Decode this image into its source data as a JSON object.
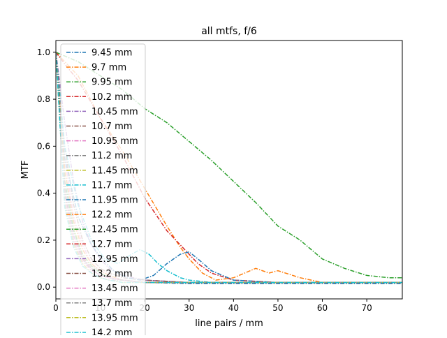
{
  "chart_data": {
    "type": "line",
    "title": "all mtfs, f/6",
    "xlabel": "line pairs / mm",
    "ylabel": "MTF",
    "xlim": [
      0,
      78
    ],
    "ylim": [
      -0.05,
      1.05
    ],
    "x_ticks": [
      0,
      10,
      20,
      30,
      40,
      50,
      60,
      70
    ],
    "y_ticks": [
      0.0,
      0.2,
      0.4,
      0.6,
      0.8,
      1.0
    ],
    "grid": false,
    "legend_placement": "top-left",
    "line_style": "dash-dot",
    "series": [
      {
        "name": "9.45 mm",
        "color": "#1f77b4",
        "x": [
          0,
          2,
          4,
          6,
          8,
          10,
          12,
          15,
          20,
          30,
          50,
          78
        ],
        "y": [
          1.0,
          0.5,
          0.25,
          0.12,
          0.08,
          0.05,
          0.04,
          0.03,
          0.02,
          0.015,
          0.015,
          0.015
        ]
      },
      {
        "name": "9.7 mm",
        "color": "#ff7f0e",
        "x": [
          0,
          2,
          5,
          10,
          15,
          20,
          25,
          28,
          30,
          33,
          36,
          40,
          45,
          48,
          50,
          55,
          60,
          65,
          70,
          78
        ],
        "y": [
          1.0,
          0.96,
          0.9,
          0.72,
          0.58,
          0.42,
          0.26,
          0.17,
          0.12,
          0.06,
          0.03,
          0.04,
          0.08,
          0.06,
          0.07,
          0.04,
          0.02,
          0.02,
          0.02,
          0.02
        ]
      },
      {
        "name": "9.95 mm",
        "color": "#2ca02c",
        "x": [
          0,
          5,
          10,
          15,
          20,
          25,
          30,
          35,
          40,
          45,
          50,
          55,
          60,
          65,
          70,
          75,
          78
        ],
        "y": [
          1.0,
          0.96,
          0.9,
          0.84,
          0.76,
          0.7,
          0.62,
          0.54,
          0.45,
          0.36,
          0.26,
          0.2,
          0.12,
          0.08,
          0.05,
          0.04,
          0.04
        ]
      },
      {
        "name": "10.2 mm",
        "color": "#d62728",
        "x": [
          0,
          2,
          5,
          10,
          15,
          20,
          25,
          28,
          30,
          32,
          35,
          40,
          50,
          60,
          78
        ],
        "y": [
          1.0,
          0.95,
          0.88,
          0.72,
          0.56,
          0.38,
          0.24,
          0.18,
          0.14,
          0.1,
          0.06,
          0.03,
          0.02,
          0.02,
          0.02
        ]
      },
      {
        "name": "10.45 mm",
        "color": "#9467bd",
        "x": [
          0,
          2,
          4,
          6,
          8,
          10,
          12,
          15,
          20,
          30,
          50,
          78
        ],
        "y": [
          1.0,
          0.7,
          0.45,
          0.28,
          0.18,
          0.12,
          0.08,
          0.05,
          0.03,
          0.02,
          0.02,
          0.02
        ]
      },
      {
        "name": "10.7 mm",
        "color": "#8c564b",
        "x": [
          0,
          2,
          4,
          6,
          8,
          10,
          12,
          15,
          20,
          30,
          50,
          78
        ],
        "y": [
          1.0,
          0.6,
          0.35,
          0.2,
          0.12,
          0.08,
          0.06,
          0.04,
          0.03,
          0.02,
          0.02,
          0.02
        ]
      },
      {
        "name": "10.95 mm",
        "color": "#e377c2",
        "x": [
          0,
          2,
          4,
          6,
          8,
          10,
          12,
          15,
          20,
          30,
          50,
          78
        ],
        "y": [
          1.0,
          0.55,
          0.3,
          0.18,
          0.1,
          0.07,
          0.05,
          0.03,
          0.02,
          0.02,
          0.02,
          0.02
        ]
      },
      {
        "name": "11.2 mm",
        "color": "#7f7f7f",
        "x": [
          0,
          2,
          4,
          6,
          8,
          10,
          12,
          15,
          20,
          30,
          50,
          78
        ],
        "y": [
          1.0,
          0.5,
          0.28,
          0.16,
          0.1,
          0.06,
          0.04,
          0.03,
          0.02,
          0.02,
          0.02,
          0.02
        ]
      },
      {
        "name": "11.45 mm",
        "color": "#bcbd22",
        "x": [
          0,
          2,
          4,
          6,
          8,
          10,
          12,
          15,
          20,
          30,
          50,
          78
        ],
        "y": [
          1.0,
          0.45,
          0.25,
          0.14,
          0.09,
          0.06,
          0.04,
          0.03,
          0.02,
          0.02,
          0.02,
          0.02
        ]
      },
      {
        "name": "11.7 mm",
        "color": "#17becf",
        "x": [
          0,
          2,
          5,
          8,
          11,
          14,
          17,
          19,
          21,
          23,
          25,
          28,
          30,
          35,
          40,
          50,
          78
        ],
        "y": [
          1.0,
          0.6,
          0.35,
          0.2,
          0.12,
          0.1,
          0.14,
          0.16,
          0.14,
          0.1,
          0.07,
          0.04,
          0.03,
          0.02,
          0.02,
          0.02,
          0.02
        ]
      },
      {
        "name": "11.95 mm",
        "color": "#1f77b4",
        "x": [
          0,
          2,
          5,
          8,
          10,
          13,
          16,
          19,
          22,
          25,
          28,
          30,
          32,
          35,
          40,
          50,
          78
        ],
        "y": [
          1.0,
          0.55,
          0.3,
          0.18,
          0.13,
          0.07,
          0.04,
          0.03,
          0.05,
          0.1,
          0.14,
          0.15,
          0.12,
          0.07,
          0.03,
          0.02,
          0.02
        ]
      },
      {
        "name": "12.2 mm",
        "color": "#ff7f0e",
        "x": [
          0,
          2,
          4,
          6,
          8,
          10,
          12,
          15,
          20,
          30,
          50,
          78
        ],
        "y": [
          1.0,
          0.5,
          0.28,
          0.16,
          0.1,
          0.07,
          0.05,
          0.03,
          0.02,
          0.02,
          0.02,
          0.02
        ]
      },
      {
        "name": "12.45 mm",
        "color": "#2ca02c",
        "x": [
          0,
          2,
          4,
          6,
          8,
          10,
          12,
          15,
          20,
          30,
          50,
          78
        ],
        "y": [
          1.0,
          0.45,
          0.24,
          0.14,
          0.09,
          0.06,
          0.04,
          0.03,
          0.02,
          0.02,
          0.02,
          0.02
        ]
      },
      {
        "name": "12.7 mm",
        "color": "#d62728",
        "x": [
          0,
          2,
          4,
          6,
          8,
          10,
          12,
          15,
          20,
          30,
          50,
          78
        ],
        "y": [
          1.0,
          0.4,
          0.22,
          0.13,
          0.08,
          0.05,
          0.04,
          0.03,
          0.02,
          0.02,
          0.02,
          0.02
        ]
      },
      {
        "name": "12.95 mm",
        "color": "#9467bd",
        "x": [
          0,
          2,
          4,
          6,
          8,
          10,
          12,
          15,
          20,
          30,
          50,
          78
        ],
        "y": [
          1.0,
          0.42,
          0.22,
          0.12,
          0.08,
          0.05,
          0.04,
          0.03,
          0.02,
          0.02,
          0.02,
          0.02
        ]
      },
      {
        "name": "13.2 mm",
        "color": "#8c564b",
        "x": [
          0,
          2,
          4,
          6,
          8,
          10,
          12,
          15,
          20,
          30,
          50,
          78
        ],
        "y": [
          1.0,
          0.4,
          0.2,
          0.12,
          0.07,
          0.05,
          0.04,
          0.03,
          0.02,
          0.02,
          0.02,
          0.02
        ]
      },
      {
        "name": "13.45 mm",
        "color": "#e377c2",
        "x": [
          0,
          2,
          4,
          6,
          8,
          10,
          12,
          15,
          20,
          30,
          50,
          78
        ],
        "y": [
          1.0,
          0.38,
          0.2,
          0.11,
          0.07,
          0.05,
          0.04,
          0.03,
          0.02,
          0.02,
          0.02,
          0.02
        ]
      },
      {
        "name": "13.7 mm",
        "color": "#7f7f7f",
        "x": [
          0,
          2,
          4,
          6,
          8,
          10,
          12,
          15,
          20,
          30,
          50,
          78
        ],
        "y": [
          1.0,
          0.36,
          0.19,
          0.1,
          0.06,
          0.04,
          0.03,
          0.03,
          0.02,
          0.02,
          0.02,
          0.02
        ]
      },
      {
        "name": "13.95 mm",
        "color": "#bcbd22",
        "x": [
          0,
          2,
          4,
          6,
          8,
          10,
          12,
          15,
          20,
          30,
          50,
          78
        ],
        "y": [
          1.0,
          0.35,
          0.18,
          0.1,
          0.06,
          0.04,
          0.03,
          0.02,
          0.02,
          0.02,
          0.02,
          0.02
        ]
      },
      {
        "name": "14.2 mm",
        "color": "#17becf",
        "x": [
          0,
          2,
          4,
          6,
          8,
          10,
          12,
          15,
          20,
          30,
          50,
          78
        ],
        "y": [
          1.0,
          0.34,
          0.17,
          0.09,
          0.06,
          0.04,
          0.03,
          0.02,
          0.02,
          0.02,
          0.02,
          0.02
        ]
      }
    ]
  }
}
